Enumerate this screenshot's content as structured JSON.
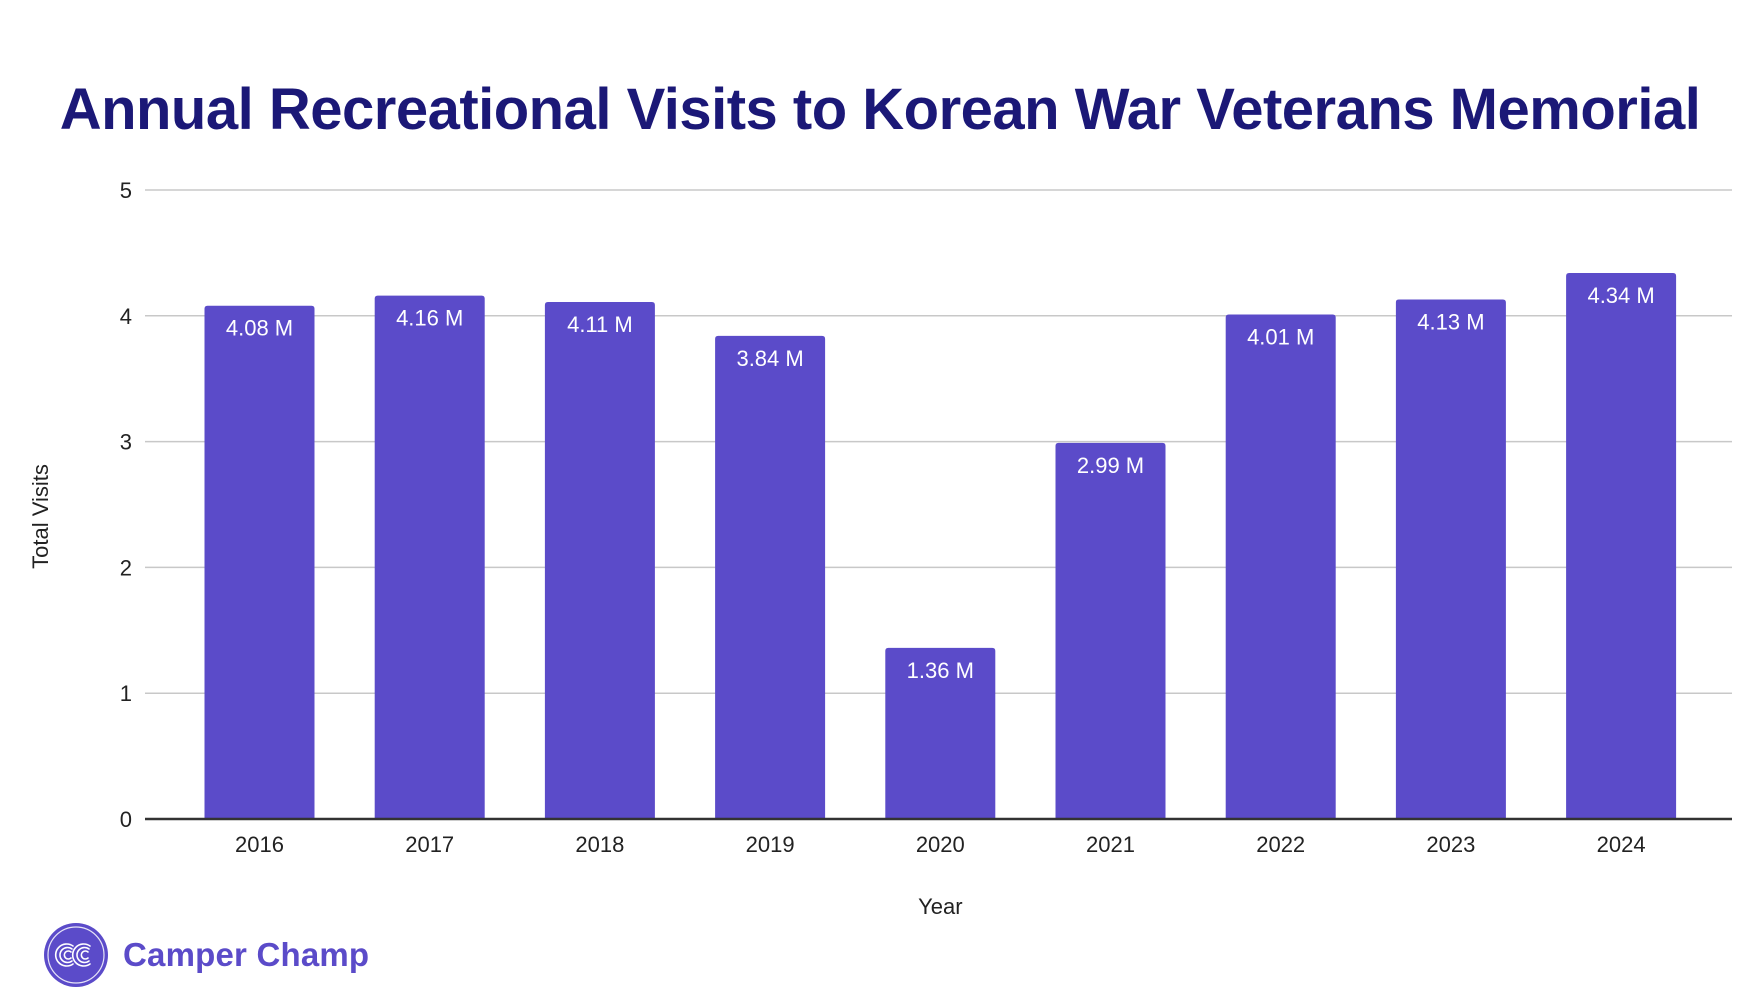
{
  "chart_data": {
    "type": "bar",
    "title": "Annual Recreational Visits to Korean War Veterans Memorial",
    "xlabel": "Year",
    "ylabel": "Total Visits",
    "categories": [
      "2016",
      "2017",
      "2018",
      "2019",
      "2020",
      "2021",
      "2022",
      "2023",
      "2024"
    ],
    "values": [
      4.08,
      4.16,
      4.11,
      3.84,
      1.36,
      2.99,
      4.01,
      4.13,
      4.34
    ],
    "value_unit": "M",
    "data_labels": [
      "4.08 M",
      "4.16 M",
      "4.11 M",
      "3.84 M",
      "1.36 M",
      "2.99 M",
      "4.01 M",
      "4.13 M",
      "4.34 M"
    ],
    "ylim": [
      0,
      5
    ],
    "yticks": [
      "0",
      "1",
      "2",
      "3",
      "4",
      "5"
    ],
    "grid": true,
    "legend": "none",
    "bar_color": "#5b4bc9",
    "title_color": "#1b1877"
  },
  "branding": {
    "logo_text": "Camper Champ",
    "logo_initials": "CC",
    "logo_color": "#5b4bc9"
  }
}
